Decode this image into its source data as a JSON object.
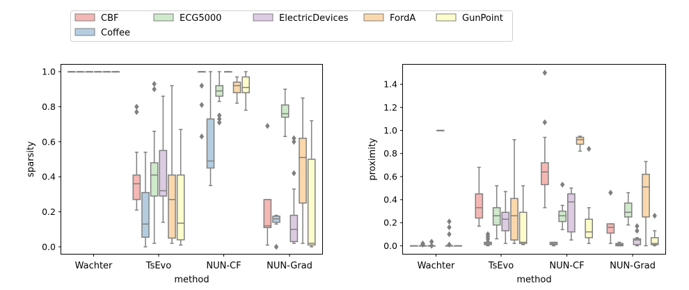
{
  "legend": {
    "placement": "top-left, above plots",
    "entries": [
      {
        "label": "CBF",
        "color": "#f4b7b3"
      },
      {
        "label": "Coffee",
        "color": "#b4cde0"
      },
      {
        "label": "ECG5000",
        "color": "#cfe9cb"
      },
      {
        "label": "ElectricDevices",
        "color": "#dccbe3"
      },
      {
        "label": "FordA",
        "color": "#fbd8ac"
      },
      {
        "label": "GunPoint",
        "color": "#fdfccb"
      }
    ]
  },
  "chart_data": [
    {
      "type": "box",
      "xlabel": "method",
      "ylabel": "sparsity",
      "categories": [
        "Wachter",
        "TsEvo",
        "NUN-CF",
        "NUN-Grad"
      ],
      "ylim": [
        -0.04,
        1.04
      ],
      "yticks": [
        0.0,
        0.2,
        0.4,
        0.6,
        0.8,
        1.0
      ],
      "ytick_labels": [
        "0.0",
        "0.2",
        "0.4",
        "0.6",
        "0.8",
        "1.0"
      ],
      "grid": false,
      "boxes": [
        {
          "category": "Wachter",
          "series": "CBF",
          "q1": 1.0,
          "median": 1.0,
          "q3": 1.0,
          "whislo": 1.0,
          "whishi": 1.0,
          "fliers": []
        },
        {
          "category": "Wachter",
          "series": "Coffee",
          "q1": 1.0,
          "median": 1.0,
          "q3": 1.0,
          "whislo": 1.0,
          "whishi": 1.0,
          "fliers": []
        },
        {
          "category": "Wachter",
          "series": "ECG5000",
          "q1": 1.0,
          "median": 1.0,
          "q3": 1.0,
          "whislo": 1.0,
          "whishi": 1.0,
          "fliers": []
        },
        {
          "category": "Wachter",
          "series": "ElectricDevices",
          "q1": 1.0,
          "median": 1.0,
          "q3": 1.0,
          "whislo": 1.0,
          "whishi": 1.0,
          "fliers": []
        },
        {
          "category": "Wachter",
          "series": "FordA",
          "q1": 1.0,
          "median": 1.0,
          "q3": 1.0,
          "whislo": 1.0,
          "whishi": 1.0,
          "fliers": []
        },
        {
          "category": "Wachter",
          "series": "GunPoint",
          "q1": 1.0,
          "median": 1.0,
          "q3": 1.0,
          "whislo": 1.0,
          "whishi": 1.0,
          "fliers": []
        },
        {
          "category": "TsEvo",
          "series": "CBF",
          "q1": 0.27,
          "median": 0.36,
          "q3": 0.41,
          "whislo": 0.21,
          "whishi": 0.54,
          "fliers": [
            0.77,
            0.8
          ]
        },
        {
          "category": "TsEvo",
          "series": "Coffee",
          "q1": 0.055,
          "median": 0.13,
          "q3": 0.31,
          "whislo": 0.0,
          "whishi": 0.54,
          "fliers": []
        },
        {
          "category": "TsEvo",
          "series": "ECG5000",
          "q1": 0.29,
          "median": 0.41,
          "q3": 0.48,
          "whislo": 0.02,
          "whishi": 0.66,
          "fliers": [
            0.9,
            0.93
          ]
        },
        {
          "category": "TsEvo",
          "series": "ElectricDevices",
          "q1": 0.29,
          "median": 0.32,
          "q3": 0.55,
          "whislo": 0.14,
          "whishi": 0.86,
          "fliers": []
        },
        {
          "category": "TsEvo",
          "series": "FordA",
          "q1": 0.05,
          "median": 0.27,
          "q3": 0.41,
          "whislo": 0.02,
          "whishi": 0.92,
          "fliers": []
        },
        {
          "category": "TsEvo",
          "series": "GunPoint",
          "q1": 0.04,
          "median": 0.135,
          "q3": 0.41,
          "whislo": 0.01,
          "whishi": 0.67,
          "fliers": []
        },
        {
          "category": "NUN-CF",
          "series": "CBF",
          "q1": 1.0,
          "median": 1.0,
          "q3": 1.0,
          "whislo": 1.0,
          "whishi": 1.0,
          "fliers": [
            0.92,
            0.81,
            0.63
          ]
        },
        {
          "category": "NUN-CF",
          "series": "Coffee",
          "q1": 0.45,
          "median": 0.49,
          "q3": 0.73,
          "whislo": 0.35,
          "whishi": 1.0,
          "fliers": []
        },
        {
          "category": "NUN-CF",
          "series": "ECG5000",
          "q1": 0.86,
          "median": 0.89,
          "q3": 0.92,
          "whislo": 0.83,
          "whishi": 1.0,
          "fliers": [
            0.75,
            0.73,
            0.71
          ]
        },
        {
          "category": "NUN-CF",
          "series": "ElectricDevices",
          "q1": 1.0,
          "median": 1.0,
          "q3": 1.0,
          "whislo": 1.0,
          "whishi": 1.0,
          "fliers": []
        },
        {
          "category": "NUN-CF",
          "series": "FordA",
          "q1": 0.88,
          "median": 0.92,
          "q3": 0.94,
          "whislo": 0.82,
          "whishi": 0.97,
          "fliers": []
        },
        {
          "category": "NUN-CF",
          "series": "GunPoint",
          "q1": 0.88,
          "median": 0.91,
          "q3": 0.97,
          "whislo": 0.78,
          "whishi": 1.0,
          "fliers": []
        },
        {
          "category": "NUN-Grad",
          "series": "CBF",
          "q1": 0.11,
          "median": 0.12,
          "q3": 0.27,
          "whislo": 0.01,
          "whishi": 0.27,
          "fliers": [
            0.69
          ]
        },
        {
          "category": "NUN-Grad",
          "series": "Coffee",
          "q1": 0.14,
          "median": 0.16,
          "q3": 0.175,
          "whislo": 0.13,
          "whishi": 0.18,
          "fliers": [
            0.0
          ]
        },
        {
          "category": "NUN-Grad",
          "series": "ECG5000",
          "q1": 0.74,
          "median": 0.76,
          "q3": 0.81,
          "whislo": 0.63,
          "whishi": 0.9,
          "fliers": []
        },
        {
          "category": "NUN-Grad",
          "series": "ElectricDevices",
          "q1": 0.03,
          "median": 0.1,
          "q3": 0.18,
          "whislo": 0.02,
          "whishi": 0.33,
          "fliers": [
            0.42,
            0.6,
            0.62
          ]
        },
        {
          "category": "NUN-Grad",
          "series": "FordA",
          "q1": 0.25,
          "median": 0.51,
          "q3": 0.62,
          "whislo": 0.02,
          "whishi": 0.85,
          "fliers": []
        },
        {
          "category": "NUN-Grad",
          "series": "GunPoint",
          "q1": 0.01,
          "median": 0.02,
          "q3": 0.5,
          "whislo": 0.0,
          "whishi": 0.72,
          "fliers": []
        }
      ]
    },
    {
      "type": "box",
      "xlabel": "method",
      "ylabel": "proximity",
      "categories": [
        "Wachter",
        "TsEvo",
        "NUN-CF",
        "NUN-Grad"
      ],
      "ylim": [
        -0.07,
        1.57
      ],
      "yticks": [
        0.0,
        0.2,
        0.4,
        0.6,
        0.8,
        1.0,
        1.2,
        1.4
      ],
      "ytick_labels": [
        "0.0",
        "0.2",
        "0.4",
        "0.6",
        "0.8",
        "1.0",
        "1.2",
        "1.4"
      ],
      "grid": false,
      "boxes": [
        {
          "category": "Wachter",
          "series": "CBF",
          "q1": 0.0,
          "median": 0.0,
          "q3": 0.0,
          "whislo": 0.0,
          "whishi": 0.0,
          "fliers": []
        },
        {
          "category": "Wachter",
          "series": "Coffee",
          "q1": 0.0,
          "median": 0.0,
          "q3": 0.0,
          "whislo": 0.0,
          "whishi": 0.0,
          "fliers": [
            0.02,
            0.01
          ]
        },
        {
          "category": "Wachter",
          "series": "ECG5000",
          "q1": 0.0,
          "median": 0.0,
          "q3": 0.0,
          "whislo": 0.0,
          "whishi": 0.0,
          "fliers": [
            0.035,
            0.0
          ]
        },
        {
          "category": "Wachter",
          "series": "ElectricDevices",
          "q1": 1.0,
          "median": 1.0,
          "q3": 1.0,
          "whislo": 1.0,
          "whishi": 1.0,
          "fliers": []
        },
        {
          "category": "Wachter",
          "series": "FordA",
          "q1": 0.0,
          "median": 0.0,
          "q3": 0.0,
          "whislo": 0.0,
          "whishi": 0.0,
          "fliers": [
            0.21,
            0.16,
            0.1,
            0.01
          ]
        },
        {
          "category": "Wachter",
          "series": "GunPoint",
          "q1": 0.0,
          "median": 0.0,
          "q3": 0.0,
          "whislo": 0.0,
          "whishi": 0.0,
          "fliers": []
        },
        {
          "category": "TsEvo",
          "series": "CBF",
          "q1": 0.24,
          "median": 0.33,
          "q3": 0.45,
          "whislo": 0.17,
          "whishi": 0.68,
          "fliers": []
        },
        {
          "category": "TsEvo",
          "series": "Coffee",
          "q1": 0.01,
          "median": 0.02,
          "q3": 0.03,
          "whislo": 0.0,
          "whishi": 0.04,
          "fliers": [
            0.06,
            0.08,
            0.1
          ]
        },
        {
          "category": "TsEvo",
          "series": "ECG5000",
          "q1": 0.18,
          "median": 0.26,
          "q3": 0.33,
          "whislo": 0.06,
          "whishi": 0.52,
          "fliers": []
        },
        {
          "category": "TsEvo",
          "series": "ElectricDevices",
          "q1": 0.13,
          "median": 0.23,
          "q3": 0.29,
          "whislo": 0.02,
          "whishi": 0.47,
          "fliers": []
        },
        {
          "category": "TsEvo",
          "series": "FordA",
          "q1": 0.05,
          "median": 0.26,
          "q3": 0.41,
          "whislo": 0.02,
          "whishi": 0.92,
          "fliers": []
        },
        {
          "category": "TsEvo",
          "series": "GunPoint",
          "q1": 0.02,
          "median": 0.03,
          "q3": 0.29,
          "whislo": 0.01,
          "whishi": 0.52,
          "fliers": []
        },
        {
          "category": "NUN-CF",
          "series": "CBF",
          "q1": 0.53,
          "median": 0.64,
          "q3": 0.72,
          "whislo": 0.33,
          "whishi": 0.94,
          "fliers": [
            1.07,
            1.5
          ]
        },
        {
          "category": "NUN-CF",
          "series": "Coffee",
          "q1": 0.01,
          "median": 0.02,
          "q3": 0.03,
          "whislo": 0.0,
          "whishi": 0.03,
          "fliers": []
        },
        {
          "category": "NUN-CF",
          "series": "ECG5000",
          "q1": 0.21,
          "median": 0.26,
          "q3": 0.3,
          "whislo": 0.14,
          "whishi": 0.35,
          "fliers": [
            0.53
          ]
        },
        {
          "category": "NUN-CF",
          "series": "ElectricDevices",
          "q1": 0.12,
          "median": 0.38,
          "q3": 0.45,
          "whislo": 0.05,
          "whishi": 0.5,
          "fliers": []
        },
        {
          "category": "NUN-CF",
          "series": "FordA",
          "q1": 0.88,
          "median": 0.92,
          "q3": 0.94,
          "whislo": 0.82,
          "whishi": 0.95,
          "fliers": []
        },
        {
          "category": "NUN-CF",
          "series": "GunPoint",
          "q1": 0.07,
          "median": 0.12,
          "q3": 0.23,
          "whislo": 0.02,
          "whishi": 0.33,
          "fliers": [
            0.84
          ]
        },
        {
          "category": "NUN-Grad",
          "series": "CBF",
          "q1": 0.11,
          "median": 0.16,
          "q3": 0.19,
          "whislo": 0.02,
          "whishi": 0.19,
          "fliers": [
            0.46
          ]
        },
        {
          "category": "NUN-Grad",
          "series": "Coffee",
          "q1": 0.0,
          "median": 0.01,
          "q3": 0.02,
          "whislo": 0.0,
          "whishi": 0.03,
          "fliers": []
        },
        {
          "category": "NUN-Grad",
          "series": "ECG5000",
          "q1": 0.25,
          "median": 0.29,
          "q3": 0.37,
          "whislo": 0.18,
          "whishi": 0.46,
          "fliers": []
        },
        {
          "category": "NUN-Grad",
          "series": "ElectricDevices",
          "q1": 0.01,
          "median": 0.05,
          "q3": 0.06,
          "whislo": 0.0,
          "whishi": 0.07,
          "fliers": [
            0.13,
            0.17
          ]
        },
        {
          "category": "NUN-Grad",
          "series": "FordA",
          "q1": 0.25,
          "median": 0.51,
          "q3": 0.62,
          "whislo": 0.0,
          "whishi": 0.73,
          "fliers": []
        },
        {
          "category": "NUN-Grad",
          "series": "GunPoint",
          "q1": 0.01,
          "median": 0.02,
          "q3": 0.07,
          "whislo": 0.0,
          "whishi": 0.13,
          "fliers": [
            0.26
          ]
        }
      ]
    }
  ]
}
